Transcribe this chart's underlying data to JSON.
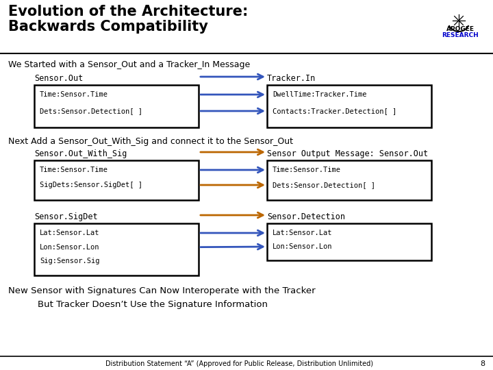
{
  "title_line1": "Evolution of the Architecture:",
  "title_line2": "Backwards Compatibility",
  "subtitle1": "We Started with a Sensor_Out and a Tracker_In Message",
  "subtitle2": "Next Add a Sensor_Out_With_Sig and connect it to the Sensor_Out",
  "footer1": "New Sensor with Signatures Can Now Interoperate with the Tracker",
  "footer2": "But Tracker Doesn’t Use the Signature Information",
  "distribution": "Distribution Statement “A” (Approved for Public Release, Distribution Unlimited)",
  "page_num": "8",
  "bg_color": "#ffffff",
  "blue_arrow": "#3355bb",
  "orange_arrow": "#bb6600",
  "section1": {
    "left_label": "Sensor.Out",
    "right_label": "Tracker.In",
    "left_fields": [
      "Time:Sensor.Time",
      "Dets:Sensor.Detection[ ]"
    ],
    "right_fields": [
      "DwellTime:Tracker.Time",
      "Contacts:Tracker.Detection[ ]"
    ],
    "field_arrow_colors": [
      "#3355bb",
      "#3355bb"
    ],
    "top_arrow_color": "#3355bb"
  },
  "section2": {
    "left_label": "Sensor.Out_With_Sig",
    "right_label": "Sensor Output Message: Sensor.Out",
    "left_fields": [
      "Time:Sensor.Time",
      "SigDets:Sensor.SigDet[ ]"
    ],
    "right_fields": [
      "Time:Sensor.Time",
      "Dets:Sensor.Detection[ ]"
    ],
    "field_arrow_colors": [
      "#3355bb",
      "#bb6600"
    ],
    "top_arrow_color": "#bb6600"
  },
  "section3": {
    "left_label": "Sensor.SigDet",
    "right_label": "Sensor.Detection",
    "left_fields": [
      "Lat:Sensor.Lat",
      "Lon:Sensor.Lon",
      "Sig:Sensor.Sig"
    ],
    "right_fields": [
      "Lat:Sensor.Lat",
      "Lon:Sensor.Lon"
    ],
    "field_arrow_colors": [
      "#3355bb",
      "#3355bb"
    ],
    "top_arrow_color": "#bb6600"
  }
}
